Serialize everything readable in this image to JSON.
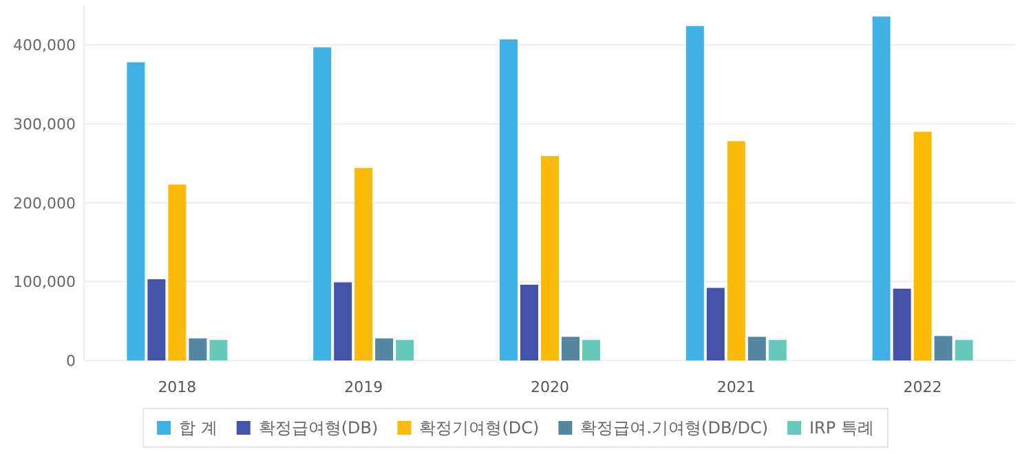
{
  "chart_data": {
    "type": "bar",
    "categories": [
      "2018",
      "2019",
      "2020",
      "2021",
      "2022"
    ],
    "series": [
      {
        "name": "합 계",
        "color": "#3fb1e5",
        "values": [
          378000,
          397000,
          407000,
          424000,
          436000
        ]
      },
      {
        "name": "확정급여형(DB)",
        "color": "#4453a8",
        "values": [
          103000,
          99000,
          96000,
          92000,
          91000
        ]
      },
      {
        "name": "확정기여형(DC)",
        "color": "#fbba04",
        "values": [
          223000,
          244000,
          259000,
          278000,
          290000
        ]
      },
      {
        "name": "확정급여.기여형(DB/DC)",
        "color": "#5587a3",
        "values": [
          28000,
          28000,
          30000,
          30000,
          31000
        ]
      },
      {
        "name": "IRP 특례",
        "color": "#67c9ba",
        "values": [
          26000,
          26000,
          26000,
          26000,
          26000
        ]
      }
    ],
    "ylim": [
      0,
      450000
    ],
    "yticks": [
      {
        "value": 0,
        "label": "0"
      },
      {
        "value": 100000,
        "label": "100,000"
      },
      {
        "value": 200000,
        "label": "200,000"
      },
      {
        "value": 300000,
        "label": "300,000"
      },
      {
        "value": 400000,
        "label": "400,000"
      }
    ],
    "grid": "y",
    "legend": "bottom"
  }
}
